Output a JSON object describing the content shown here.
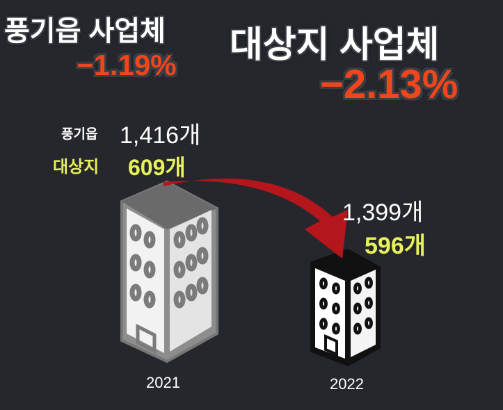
{
  "headline_left": {
    "title": "풍기읍 사업체",
    "change": "−1.19%"
  },
  "headline_right": {
    "title": "대상지 사업체",
    "change": "−2.13%"
  },
  "year_2021": {
    "label_a": "풍기읍",
    "value_a": "1,416개",
    "label_b": "대상지",
    "value_b": "609개",
    "year": "2021"
  },
  "year_2022": {
    "value_a": "1,399개",
    "value_b": "596개",
    "year": "2022"
  }
}
